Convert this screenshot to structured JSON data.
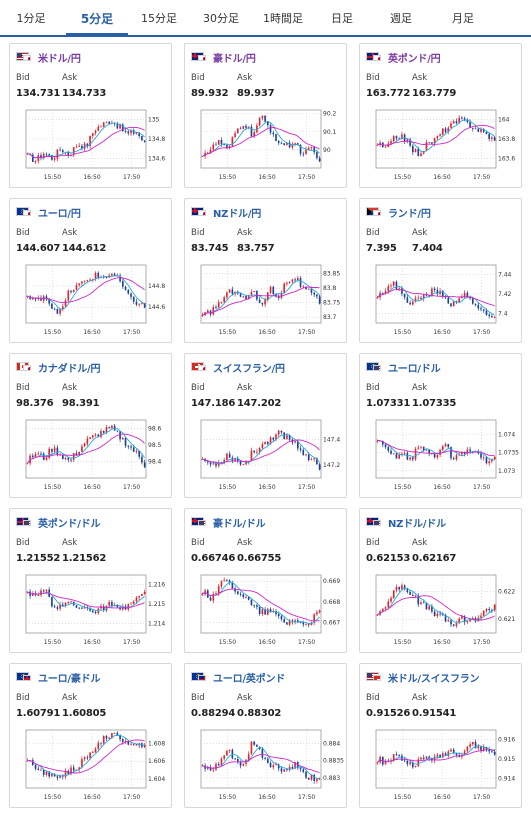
{
  "tabs": [
    {
      "label": "1分足",
      "active": false
    },
    {
      "label": "5分足",
      "active": true
    },
    {
      "label": "15分足",
      "active": false
    },
    {
      "label": "30分足",
      "active": false
    },
    {
      "label": "1時間足",
      "active": false
    },
    {
      "label": "日足",
      "active": false
    },
    {
      "label": "週足",
      "active": false
    },
    {
      "label": "月足",
      "active": false
    }
  ],
  "labels": {
    "bid": "Bid",
    "ask": "Ask"
  },
  "colors": {
    "up": "#e8202a",
    "down": "#1b3f9c",
    "ma": "#d028c8",
    "ma_fast": "#2aa9d8",
    "tab_accent": "#2a5fa8"
  },
  "cards": [
    {
      "pair": "米ドル/円",
      "flag": "us-jp-flag-icon",
      "bid": "134.731",
      "ask": "134.733",
      "chart_data": {
        "type": "candlestick",
        "x_ticks": [
          "15:50",
          "16:50",
          "17:50"
        ],
        "y_ticks": [
          "134.6",
          "134.8",
          "135"
        ],
        "ylim": [
          134.5,
          135.1
        ],
        "trend": [
          134.62,
          134.58,
          134.66,
          134.6,
          134.7,
          134.64,
          134.75,
          134.72,
          134.9,
          134.95,
          135.0,
          134.92,
          134.85,
          134.88,
          134.75
        ]
      }
    },
    {
      "pair": "豪ドル/円",
      "flag": "au-jp-flag-icon",
      "bid": "89.932",
      "ask": "89.937",
      "chart_data": {
        "type": "candlestick",
        "x_ticks": [
          "15:50",
          "16:50",
          "17:50"
        ],
        "y_ticks": [
          "90",
          "90.1",
          "90.2"
        ],
        "ylim": [
          89.9,
          90.22
        ],
        "trend": [
          89.98,
          90.0,
          90.05,
          89.99,
          90.1,
          90.15,
          90.08,
          90.18,
          90.12,
          90.05,
          90.02,
          90.04,
          89.98,
          90.0,
          89.93
        ]
      }
    },
    {
      "pair": "英ポンド/円",
      "flag": "gb-jp-flag-icon",
      "bid": "163.772",
      "ask": "163.779",
      "chart_data": {
        "type": "candlestick",
        "x_ticks": [
          "15:50",
          "16:50",
          "17:50"
        ],
        "y_ticks": [
          "163.6",
          "163.8",
          "164"
        ],
        "ylim": [
          163.5,
          164.1
        ],
        "trend": [
          163.75,
          163.7,
          163.8,
          163.85,
          163.7,
          163.65,
          163.75,
          163.8,
          163.9,
          163.95,
          164.0,
          163.95,
          163.9,
          163.85,
          163.78
        ]
      }
    },
    {
      "pair": "ユーロ/円",
      "flag": "eu-jp-flag-icon",
      "bid": "144.607",
      "ask": "144.612",
      "chart_data": {
        "type": "candlestick",
        "x_ticks": [
          "15:50",
          "16:50",
          "17:50"
        ],
        "y_ticks": [
          "144.6",
          "144.8"
        ],
        "ylim": [
          144.45,
          145.0
        ],
        "trend": [
          144.7,
          144.65,
          144.72,
          144.6,
          144.55,
          144.75,
          144.8,
          144.85,
          144.9,
          144.88,
          144.92,
          144.85,
          144.7,
          144.65,
          144.6
        ]
      }
    },
    {
      "pair": "NZドル/円",
      "flag": "nz-jp-flag-icon",
      "bid": "83.745",
      "ask": "83.757",
      "chart_data": {
        "type": "candlestick",
        "x_ticks": [
          "15:50",
          "16:50",
          "17:50"
        ],
        "y_ticks": [
          "83.7",
          "83.75",
          "83.8",
          "83.85"
        ],
        "ylim": [
          83.68,
          83.88
        ],
        "trend": [
          83.7,
          83.72,
          83.75,
          83.78,
          83.8,
          83.76,
          83.79,
          83.74,
          83.8,
          83.77,
          83.82,
          83.84,
          83.8,
          83.78,
          83.75
        ]
      }
    },
    {
      "pair": "ランド/円",
      "flag": "za-jp-flag-icon",
      "bid": "7.395",
      "ask": "7.404",
      "chart_data": {
        "type": "candlestick",
        "x_ticks": [
          "15:50",
          "16:50",
          "17:50"
        ],
        "y_ticks": [
          "7.4",
          "7.42",
          "7.44"
        ],
        "ylim": [
          7.39,
          7.45
        ],
        "trend": [
          7.42,
          7.425,
          7.43,
          7.42,
          7.41,
          7.415,
          7.42,
          7.425,
          7.415,
          7.41,
          7.42,
          7.415,
          7.405,
          7.4,
          7.398
        ]
      }
    },
    {
      "pair": "カナダドル/円",
      "flag": "ca-jp-flag-icon",
      "bid": "98.376",
      "ask": "98.391",
      "chart_data": {
        "type": "candlestick",
        "x_ticks": [
          "15:50",
          "16:50",
          "17:50"
        ],
        "y_ticks": [
          "98.4",
          "98.5",
          "98.6"
        ],
        "ylim": [
          98.3,
          98.65
        ],
        "trend": [
          98.4,
          98.45,
          98.42,
          98.48,
          98.44,
          98.4,
          98.46,
          98.52,
          98.55,
          98.58,
          98.6,
          98.55,
          98.5,
          98.45,
          98.38
        ]
      }
    },
    {
      "pair": "スイスフラン/円",
      "flag": "ch-jp-flag-icon",
      "bid": "147.186",
      "ask": "147.202",
      "chart_data": {
        "type": "candlestick",
        "x_ticks": [
          "15:50",
          "16:50",
          "17:50"
        ],
        "y_ticks": [
          "147.2",
          "147.4"
        ],
        "ylim": [
          147.1,
          147.55
        ],
        "trend": [
          147.25,
          147.2,
          147.22,
          147.28,
          147.24,
          147.2,
          147.3,
          147.35,
          147.4,
          147.45,
          147.42,
          147.38,
          147.3,
          147.25,
          147.19
        ]
      }
    },
    {
      "pair": "ユーロ/ドル",
      "flag": "eu-us-flag-icon",
      "bid": "1.07331",
      "ask": "1.07335",
      "chart_data": {
        "type": "candlestick",
        "x_ticks": [
          "15:50",
          "16:50",
          "17:50"
        ],
        "y_ticks": [
          "1.073",
          "1.0735",
          "1.074"
        ],
        "ylim": [
          1.0728,
          1.0744
        ],
        "trend": [
          1.0738,
          1.0736,
          1.0734,
          1.0735,
          1.0733,
          1.0737,
          1.0735,
          1.0734,
          1.0738,
          1.0733,
          1.0735,
          1.0736,
          1.0734,
          1.0733,
          1.0733
        ]
      }
    },
    {
      "pair": "英ポンド/ドル",
      "flag": "gb-us-flag-icon",
      "bid": "1.21552",
      "ask": "1.21562",
      "chart_data": {
        "type": "candlestick",
        "x_ticks": [
          "15:50",
          "16:50",
          "17:50"
        ],
        "y_ticks": [
          "1.214",
          "1.215",
          "1.216"
        ],
        "ylim": [
          1.2135,
          1.2165
        ],
        "trend": [
          1.2155,
          1.2153,
          1.2158,
          1.215,
          1.2148,
          1.2152,
          1.2147,
          1.215,
          1.2145,
          1.2148,
          1.215,
          1.2146,
          1.2149,
          1.2153,
          1.2155
        ]
      }
    },
    {
      "pair": "豪ドル/ドル",
      "flag": "au-us-flag-icon",
      "bid": "0.66746",
      "ask": "0.66755",
      "chart_data": {
        "type": "candlestick",
        "x_ticks": [
          "15:50",
          "16:50",
          "17:50"
        ],
        "y_ticks": [
          "0.667",
          "0.668",
          "0.669"
        ],
        "ylim": [
          0.6665,
          0.6693
        ],
        "trend": [
          0.6685,
          0.6682,
          0.6688,
          0.669,
          0.6686,
          0.6683,
          0.6678,
          0.6675,
          0.6676,
          0.6673,
          0.667,
          0.6672,
          0.6669,
          0.6671,
          0.6675
        ]
      }
    },
    {
      "pair": "NZドル/ドル",
      "flag": "nz-us-flag-icon",
      "bid": "0.62153",
      "ask": "0.62167",
      "chart_data": {
        "type": "candlestick",
        "x_ticks": [
          "15:50",
          "16:50",
          "17:50"
        ],
        "y_ticks": [
          "0.621",
          "0.622"
        ],
        "ylim": [
          0.6205,
          0.6226
        ],
        "trend": [
          0.6212,
          0.6215,
          0.622,
          0.6223,
          0.6219,
          0.6216,
          0.6214,
          0.6212,
          0.621,
          0.6208,
          0.621,
          0.6209,
          0.6211,
          0.6213,
          0.6215
        ]
      }
    },
    {
      "pair": "ユーロ/豪ドル",
      "flag": "eu-au-flag-icon",
      "bid": "1.60791",
      "ask": "1.60805",
      "chart_data": {
        "type": "candlestick",
        "x_ticks": [
          "15:50",
          "16:50",
          "17:50"
        ],
        "y_ticks": [
          "1.604",
          "1.606",
          "1.608"
        ],
        "ylim": [
          1.603,
          1.6095
        ],
        "trend": [
          1.606,
          1.6052,
          1.6048,
          1.6042,
          1.6045,
          1.605,
          1.6055,
          1.6062,
          1.6075,
          1.6085,
          1.609,
          1.6086,
          1.6082,
          1.6079,
          1.6078
        ]
      }
    },
    {
      "pair": "ユーロ/英ポンド",
      "flag": "eu-gb-flag-icon",
      "bid": "0.88294",
      "ask": "0.88302",
      "chart_data": {
        "type": "candlestick",
        "x_ticks": [
          "15:50",
          "16:50",
          "17:50"
        ],
        "y_ticks": [
          "0.883",
          "0.8835",
          "0.884"
        ],
        "ylim": [
          0.8827,
          0.8844
        ],
        "trend": [
          0.8833,
          0.8832,
          0.8834,
          0.8838,
          0.8835,
          0.8833,
          0.8841,
          0.8837,
          0.8834,
          0.8833,
          0.8832,
          0.8834,
          0.8831,
          0.883,
          0.883
        ]
      }
    },
    {
      "pair": "米ドル/スイスフラン",
      "flag": "us-ch-flag-icon",
      "bid": "0.91526",
      "ask": "0.91541",
      "chart_data": {
        "type": "candlestick",
        "x_ticks": [
          "15:50",
          "16:50",
          "17:50"
        ],
        "y_ticks": [
          "0.914",
          "0.915",
          "0.916"
        ],
        "ylim": [
          0.9135,
          0.9165
        ],
        "trend": [
          0.915,
          0.9148,
          0.9152,
          0.915,
          0.9147,
          0.9149,
          0.9151,
          0.915,
          0.9153,
          0.9155,
          0.9152,
          0.9158,
          0.9156,
          0.9155,
          0.9153
        ]
      }
    }
  ]
}
